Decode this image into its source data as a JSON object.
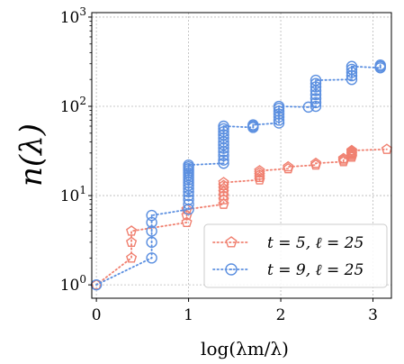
{
  "chart_data": {
    "type": "scatter",
    "xlabel": "log(λm/λ)",
    "ylabel": "n(λ)",
    "xlim": [
      -0.05,
      3.2
    ],
    "ylim_log10": [
      -0.15,
      3.05
    ],
    "y_scale": "log",
    "grid": true,
    "legend_placement": "bottom-right",
    "x_ticks": [
      {
        "value": 0,
        "label": "0"
      },
      {
        "value": 1,
        "label": "1"
      },
      {
        "value": 2,
        "label": "2"
      },
      {
        "value": 3,
        "label": "3"
      }
    ],
    "y_ticks": [
      {
        "value": 1,
        "base": "10",
        "exp": "0"
      },
      {
        "value": 10,
        "base": "10",
        "exp": "1"
      },
      {
        "value": 100,
        "base": "10",
        "exp": "2"
      },
      {
        "value": 1000,
        "base": "10",
        "exp": "3"
      }
    ],
    "series": [
      {
        "name": "t = 5, ℓ = 25",
        "color": "#f08070",
        "marker": "pentagon",
        "points": [
          [
            0,
            1
          ],
          [
            0.38,
            2
          ],
          [
            0.38,
            3
          ],
          [
            0.38,
            4
          ],
          [
            0.98,
            5
          ],
          [
            0.98,
            6
          ],
          [
            0.98,
            7
          ],
          [
            1.38,
            8
          ],
          [
            1.38,
            9
          ],
          [
            1.38,
            10
          ],
          [
            1.38,
            11
          ],
          [
            1.38,
            12
          ],
          [
            1.38,
            13
          ],
          [
            1.38,
            14
          ],
          [
            1.77,
            15
          ],
          [
            1.77,
            16
          ],
          [
            1.77,
            17
          ],
          [
            1.77,
            18
          ],
          [
            1.77,
            19
          ],
          [
            2.08,
            20
          ],
          [
            2.08,
            21
          ],
          [
            2.38,
            22
          ],
          [
            2.38,
            23
          ],
          [
            2.68,
            24
          ],
          [
            2.68,
            25
          ],
          [
            2.68,
            26
          ],
          [
            2.77,
            27
          ],
          [
            2.77,
            28
          ],
          [
            2.77,
            29
          ],
          [
            2.77,
            30
          ],
          [
            2.77,
            31
          ],
          [
            2.77,
            32
          ],
          [
            3.15,
            33
          ]
        ]
      },
      {
        "name": "t = 9, ℓ = 25",
        "color": "#5b8fe0",
        "marker": "circle",
        "points": [
          [
            0,
            1
          ],
          [
            0.6,
            2
          ],
          [
            0.6,
            3
          ],
          [
            0.6,
            4
          ],
          [
            0.6,
            5
          ],
          [
            0.6,
            6
          ],
          [
            1.0,
            7
          ],
          [
            1.0,
            8
          ],
          [
            1.0,
            9
          ],
          [
            1.0,
            10
          ],
          [
            1.0,
            11
          ],
          [
            1.0,
            12
          ],
          [
            1.0,
            13
          ],
          [
            1.0,
            14
          ],
          [
            1.0,
            15
          ],
          [
            1.0,
            16
          ],
          [
            1.0,
            17
          ],
          [
            1.0,
            18
          ],
          [
            1.0,
            19
          ],
          [
            1.0,
            20
          ],
          [
            1.0,
            21
          ],
          [
            1.0,
            22
          ],
          [
            1.38,
            23
          ],
          [
            1.38,
            25
          ],
          [
            1.38,
            28
          ],
          [
            1.38,
            31
          ],
          [
            1.38,
            34
          ],
          [
            1.38,
            37
          ],
          [
            1.38,
            40
          ],
          [
            1.38,
            44
          ],
          [
            1.38,
            48
          ],
          [
            1.38,
            52
          ],
          [
            1.38,
            56
          ],
          [
            1.38,
            60
          ],
          [
            1.7,
            58
          ],
          [
            1.7,
            60
          ],
          [
            1.7,
            62
          ],
          [
            1.98,
            65
          ],
          [
            1.98,
            70
          ],
          [
            1.98,
            76
          ],
          [
            1.98,
            82
          ],
          [
            1.98,
            88
          ],
          [
            1.98,
            95
          ],
          [
            1.98,
            100
          ],
          [
            2.3,
            98
          ],
          [
            2.38,
            100
          ],
          [
            2.38,
            110
          ],
          [
            2.38,
            122
          ],
          [
            2.38,
            135
          ],
          [
            2.38,
            150
          ],
          [
            2.38,
            165
          ],
          [
            2.38,
            180
          ],
          [
            2.38,
            196
          ],
          [
            2.77,
            200
          ],
          [
            2.77,
            220
          ],
          [
            2.77,
            240
          ],
          [
            2.77,
            260
          ],
          [
            2.77,
            280
          ],
          [
            3.08,
            270
          ],
          [
            3.08,
            280
          ],
          [
            3.08,
            290
          ]
        ]
      }
    ]
  }
}
